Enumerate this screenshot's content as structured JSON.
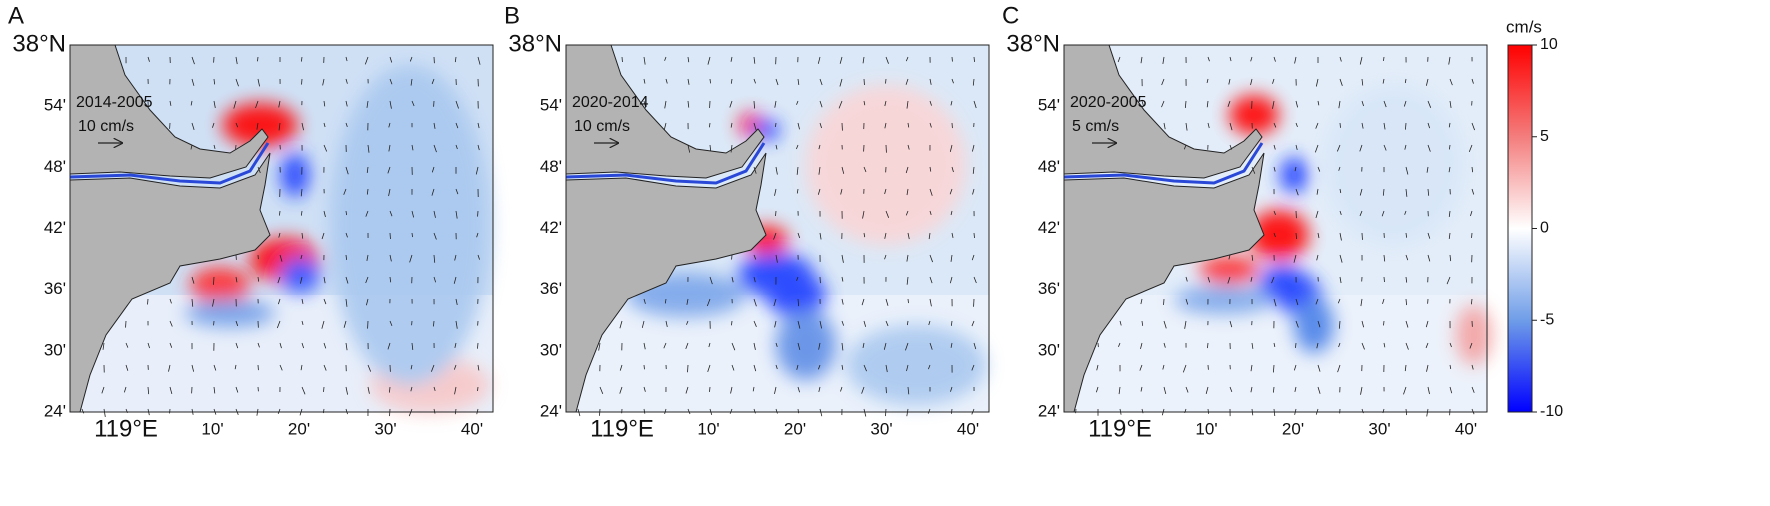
{
  "panels": [
    {
      "label": "A",
      "period": "2014-2005",
      "scale": "10 cm/s"
    },
    {
      "label": "B",
      "period": "2020-2014",
      "scale": "10 cm/s"
    },
    {
      "label": "C",
      "period": "2020-2005",
      "scale": "5 cm/s"
    }
  ],
  "y_labels": [
    "38°N",
    "54'",
    "48'",
    "42'",
    "36'",
    "30'",
    "24'"
  ],
  "x_labels": [
    "119°E",
    "10'",
    "20'",
    "30'",
    "40'"
  ],
  "colorbar": {
    "unit": "cm/s",
    "ticks": [
      10,
      5,
      0,
      -5,
      -10
    ]
  }
}
